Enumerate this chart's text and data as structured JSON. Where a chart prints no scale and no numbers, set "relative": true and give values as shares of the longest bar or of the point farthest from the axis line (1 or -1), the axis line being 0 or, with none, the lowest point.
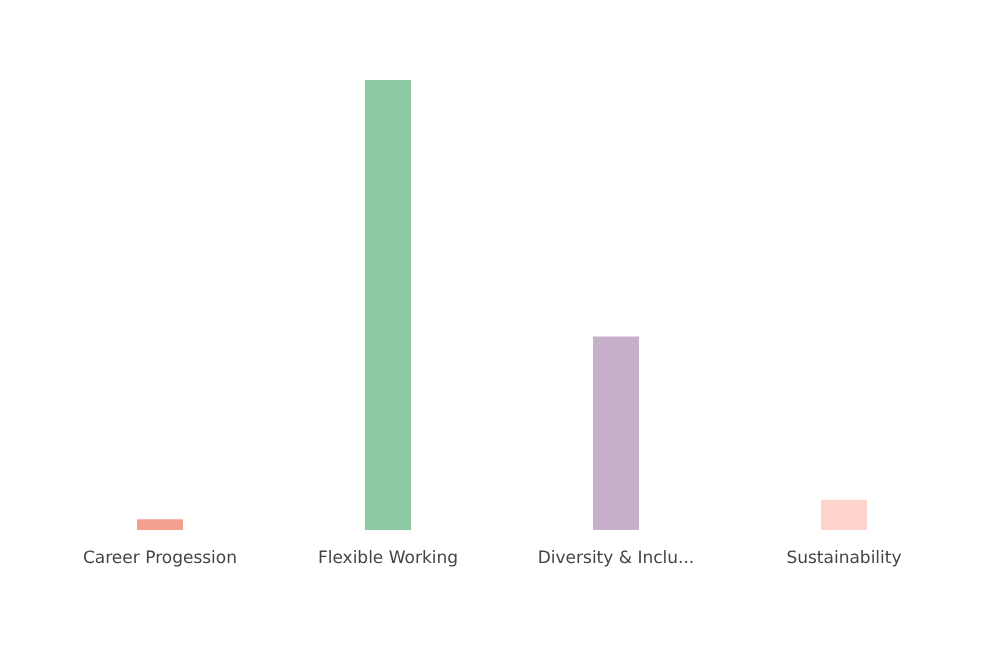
{
  "chart_data": {
    "type": "bar",
    "relative": true,
    "categories": [
      "Career Progession",
      "Flexible Working",
      "Diversity & Inclu...",
      "Sustainability"
    ],
    "values": [
      0.024,
      1,
      0.43,
      0.067
    ],
    "colors": [
      "#f4a08e",
      "#8ac9a1",
      "#c7b0c9",
      "#fed4cc"
    ]
  }
}
